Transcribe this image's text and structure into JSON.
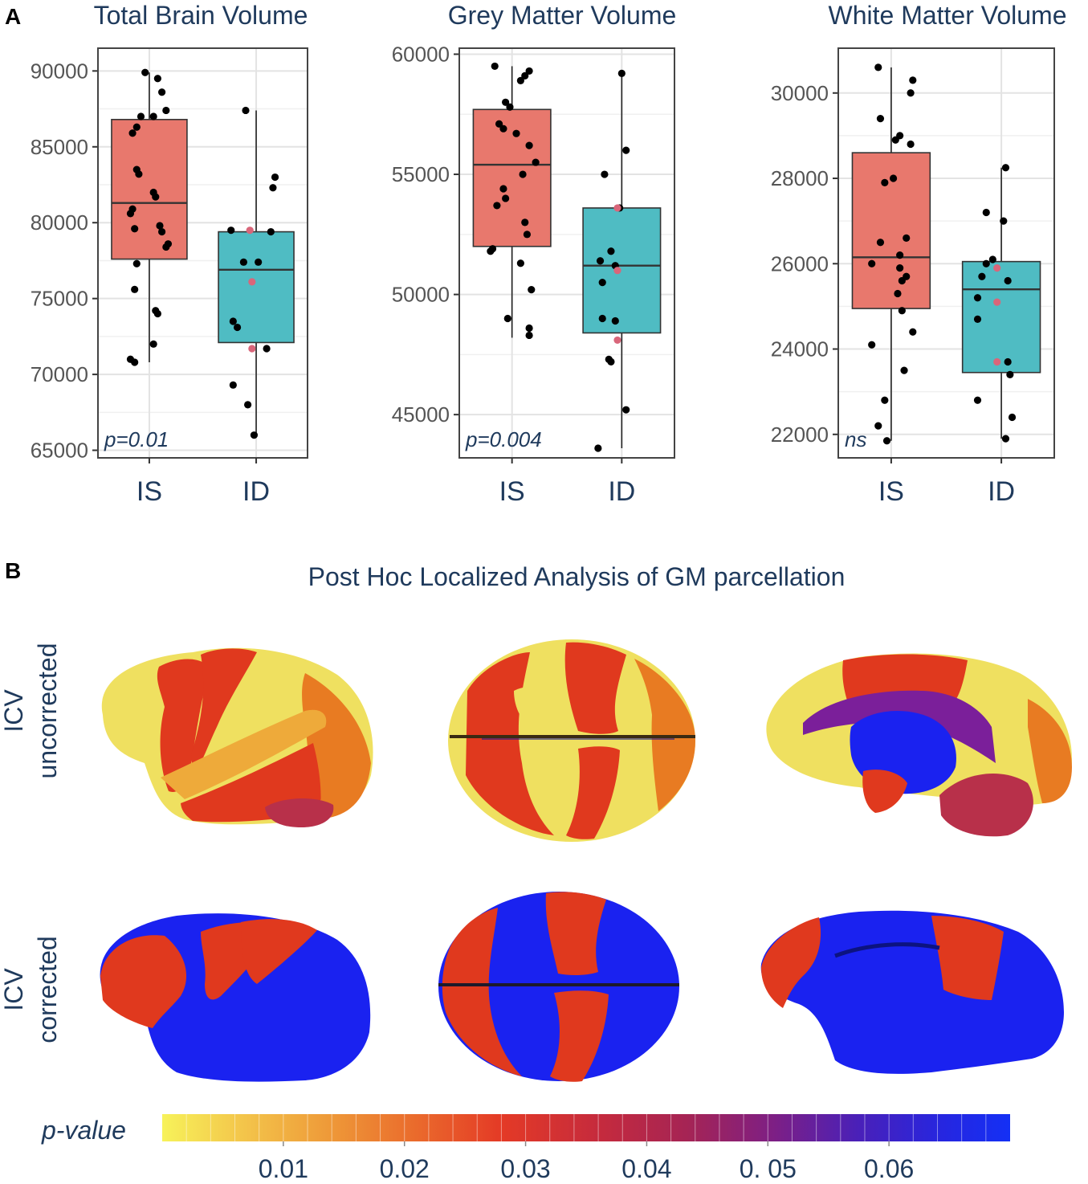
{
  "panel_a": {
    "label": "A"
  },
  "panel_b": {
    "label": "B",
    "title": "Post Hoc Localized Analysis of GM parcellation",
    "rows": [
      {
        "line1": "ICV",
        "line2": "uncorrected"
      },
      {
        "line1": "ICV",
        "line2": "corrected"
      }
    ],
    "views": [
      "lateral-view",
      "dorsal-view",
      "medial-view"
    ]
  },
  "colors": {
    "is_fill": "#e8786d",
    "id_fill": "#4fbcc3",
    "highlight_point": "#d9667a",
    "yellow": "#efe060",
    "red": "#e0391e",
    "orange": "#e87b22",
    "purple": "#7b1f9a",
    "blue": "#1a22f0",
    "maroon": "#b8304a"
  },
  "colorbar": {
    "label": "p-value",
    "ticks": [
      "0.01",
      "0.02",
      "0.03",
      "0.04",
      "0. 05",
      "0.06"
    ],
    "tick_values": [
      0.01,
      0.02,
      0.03,
      0.04,
      0.05,
      0.06
    ],
    "range": [
      0,
      0.07
    ]
  },
  "chart_data": [
    {
      "type": "box",
      "title": "Total Brain Volume",
      "categories": [
        "IS",
        "ID"
      ],
      "ylim": [
        64500,
        91500
      ],
      "yticks": [
        65000,
        70000,
        75000,
        80000,
        85000,
        90000
      ],
      "annotation": "p=0.01",
      "boxes": [
        {
          "name": "IS",
          "q1": 77600,
          "median": 81300,
          "q3": 86800,
          "whisker_low": 70800,
          "whisker_high": 89900
        },
        {
          "name": "ID",
          "q1": 72100,
          "median": 76900,
          "q3": 79400,
          "whisker_low": 66000,
          "whisker_high": 87400
        }
      ],
      "points": [
        [
          {
            "v": 89900,
            "j": -0.02
          },
          {
            "v": 89500,
            "j": 0.04
          },
          {
            "v": 88600,
            "j": 0.06
          },
          {
            "v": 87400,
            "j": 0.08
          },
          {
            "v": 87000,
            "j": -0.04
          },
          {
            "v": 87000,
            "j": 0.02
          },
          {
            "v": 86300,
            "j": -0.06
          },
          {
            "v": 85900,
            "j": -0.08
          },
          {
            "v": 83500,
            "j": -0.06
          },
          {
            "v": 83200,
            "j": -0.05
          },
          {
            "v": 82000,
            "j": 0.02
          },
          {
            "v": 81700,
            "j": 0.03
          },
          {
            "v": 80900,
            "j": -0.08
          },
          {
            "v": 80600,
            "j": -0.09
          },
          {
            "v": 79800,
            "j": 0.05
          },
          {
            "v": 79600,
            "j": -0.07
          },
          {
            "v": 79400,
            "j": 0.06
          },
          {
            "v": 78600,
            "j": 0.09
          },
          {
            "v": 78400,
            "j": 0.08
          },
          {
            "v": 77300,
            "j": -0.06
          },
          {
            "v": 75600,
            "j": -0.07
          },
          {
            "v": 74200,
            "j": 0.03
          },
          {
            "v": 74000,
            "j": 0.04
          },
          {
            "v": 72000,
            "j": 0.02
          },
          {
            "v": 71000,
            "j": -0.09
          },
          {
            "v": 70800,
            "j": -0.07
          }
        ],
        [
          {
            "v": 87400,
            "j": -0.05
          },
          {
            "v": 83000,
            "j": 0.09
          },
          {
            "v": 82300,
            "j": 0.08
          },
          {
            "v": 79500,
            "j": -0.12
          },
          {
            "v": 79500,
            "j": -0.03,
            "h": true
          },
          {
            "v": 79400,
            "j": 0.07
          },
          {
            "v": 77400,
            "j": -0.06
          },
          {
            "v": 77400,
            "j": 0.01
          },
          {
            "v": 76100,
            "j": -0.02,
            "h": true
          },
          {
            "v": 73500,
            "j": -0.11
          },
          {
            "v": 73100,
            "j": -0.09
          },
          {
            "v": 71700,
            "j": -0.02,
            "h": true
          },
          {
            "v": 71700,
            "j": 0.05
          },
          {
            "v": 69300,
            "j": -0.11
          },
          {
            "v": 68000,
            "j": -0.04
          },
          {
            "v": 66000,
            "j": -0.01
          }
        ]
      ]
    },
    {
      "type": "box",
      "title": "Grey Matter Volume",
      "categories": [
        "IS",
        "ID"
      ],
      "ylim": [
        43200,
        60250
      ],
      "yticks": [
        45000,
        50000,
        55000,
        60000
      ],
      "annotation": "p=0.004",
      "boxes": [
        {
          "name": "IS",
          "q1": 52000,
          "median": 55400,
          "q3": 57700,
          "whisker_low": 48200,
          "whisker_high": 59500
        },
        {
          "name": "ID",
          "q1": 48400,
          "median": 51200,
          "q3": 53600,
          "whisker_low": 43600,
          "whisker_high": 59200
        }
      ],
      "points": [
        [
          {
            "v": 59500,
            "j": -0.08
          },
          {
            "v": 59300,
            "j": 0.08
          },
          {
            "v": 59100,
            "j": 0.06
          },
          {
            "v": 58900,
            "j": 0.04
          },
          {
            "v": 58000,
            "j": -0.03
          },
          {
            "v": 57800,
            "j": -0.01
          },
          {
            "v": 57100,
            "j": -0.06
          },
          {
            "v": 56900,
            "j": -0.04
          },
          {
            "v": 56700,
            "j": 0.02
          },
          {
            "v": 56200,
            "j": 0.08
          },
          {
            "v": 55500,
            "j": 0.11
          },
          {
            "v": 55000,
            "j": 0.05
          },
          {
            "v": 54400,
            "j": -0.04
          },
          {
            "v": 54000,
            "j": -0.03
          },
          {
            "v": 53700,
            "j": -0.07
          },
          {
            "v": 53000,
            "j": 0.06
          },
          {
            "v": 52500,
            "j": 0.07
          },
          {
            "v": 51900,
            "j": -0.09
          },
          {
            "v": 51800,
            "j": -0.1
          },
          {
            "v": 51300,
            "j": 0.04
          },
          {
            "v": 50200,
            "j": 0.09
          },
          {
            "v": 49000,
            "j": -0.02
          },
          {
            "v": 48600,
            "j": 0.08
          },
          {
            "v": 48300,
            "j": 0.08
          }
        ],
        [
          {
            "v": 59200,
            "j": 0.0
          },
          {
            "v": 56000,
            "j": 0.02
          },
          {
            "v": 55000,
            "j": -0.08
          },
          {
            "v": 53600,
            "j": -0.01
          },
          {
            "v": 53600,
            "j": -0.02,
            "h": true
          },
          {
            "v": 51800,
            "j": -0.05
          },
          {
            "v": 51400,
            "j": -0.1
          },
          {
            "v": 51200,
            "j": -0.03
          },
          {
            "v": 51000,
            "j": -0.02,
            "h": true
          },
          {
            "v": 50500,
            "j": -0.09
          },
          {
            "v": 49000,
            "j": -0.09
          },
          {
            "v": 48900,
            "j": -0.03
          },
          {
            "v": 48100,
            "j": -0.02,
            "h": true
          },
          {
            "v": 47300,
            "j": -0.06
          },
          {
            "v": 47200,
            "j": -0.05
          },
          {
            "v": 45200,
            "j": 0.02
          },
          {
            "v": 43600,
            "j": -0.11
          }
        ]
      ]
    },
    {
      "type": "box",
      "title": "White Matter Volume",
      "categories": [
        "IS",
        "ID"
      ],
      "ylim": [
        21450,
        31050
      ],
      "yticks": [
        22000,
        24000,
        26000,
        28000,
        30000
      ],
      "annotation": "ns",
      "boxes": [
        {
          "name": "IS",
          "q1": 24950,
          "median": 26150,
          "q3": 28600,
          "whisker_low": 21850,
          "whisker_high": 30600
        },
        {
          "name": "ID",
          "q1": 23450,
          "median": 25400,
          "q3": 26050,
          "whisker_low": 21900,
          "whisker_high": 28250
        }
      ],
      "points": [
        [
          {
            "v": 30600,
            "j": -0.06
          },
          {
            "v": 30300,
            "j": 0.1
          },
          {
            "v": 30000,
            "j": 0.09
          },
          {
            "v": 29400,
            "j": -0.05
          },
          {
            "v": 29000,
            "j": 0.04
          },
          {
            "v": 28900,
            "j": 0.02
          },
          {
            "v": 28800,
            "j": 0.09
          },
          {
            "v": 28000,
            "j": 0.01
          },
          {
            "v": 27900,
            "j": -0.03
          },
          {
            "v": 26600,
            "j": 0.07
          },
          {
            "v": 26500,
            "j": -0.05
          },
          {
            "v": 26200,
            "j": 0.04
          },
          {
            "v": 26000,
            "j": -0.09
          },
          {
            "v": 25900,
            "j": 0.04
          },
          {
            "v": 25700,
            "j": 0.07
          },
          {
            "v": 25600,
            "j": 0.05
          },
          {
            "v": 25300,
            "j": 0.03
          },
          {
            "v": 24900,
            "j": 0.05
          },
          {
            "v": 24400,
            "j": 0.1
          },
          {
            "v": 24100,
            "j": -0.09
          },
          {
            "v": 23500,
            "j": 0.06
          },
          {
            "v": 22800,
            "j": -0.03
          },
          {
            "v": 22200,
            "j": -0.06
          },
          {
            "v": 21850,
            "j": -0.02
          }
        ],
        [
          {
            "v": 28250,
            "j": 0.02
          },
          {
            "v": 27200,
            "j": -0.07
          },
          {
            "v": 27000,
            "j": 0.01
          },
          {
            "v": 26100,
            "j": -0.04
          },
          {
            "v": 26000,
            "j": -0.07
          },
          {
            "v": 25900,
            "j": -0.02,
            "h": true
          },
          {
            "v": 25700,
            "j": -0.09
          },
          {
            "v": 25600,
            "j": 0.03
          },
          {
            "v": 25200,
            "j": -0.11
          },
          {
            "v": 25100,
            "j": -0.02,
            "h": true
          },
          {
            "v": 24700,
            "j": -0.11
          },
          {
            "v": 23700,
            "j": -0.02,
            "h": true
          },
          {
            "v": 23700,
            "j": 0.03
          },
          {
            "v": 23400,
            "j": 0.04
          },
          {
            "v": 22800,
            "j": -0.11
          },
          {
            "v": 22400,
            "j": 0.05
          },
          {
            "v": 21900,
            "j": 0.02
          }
        ]
      ]
    }
  ]
}
